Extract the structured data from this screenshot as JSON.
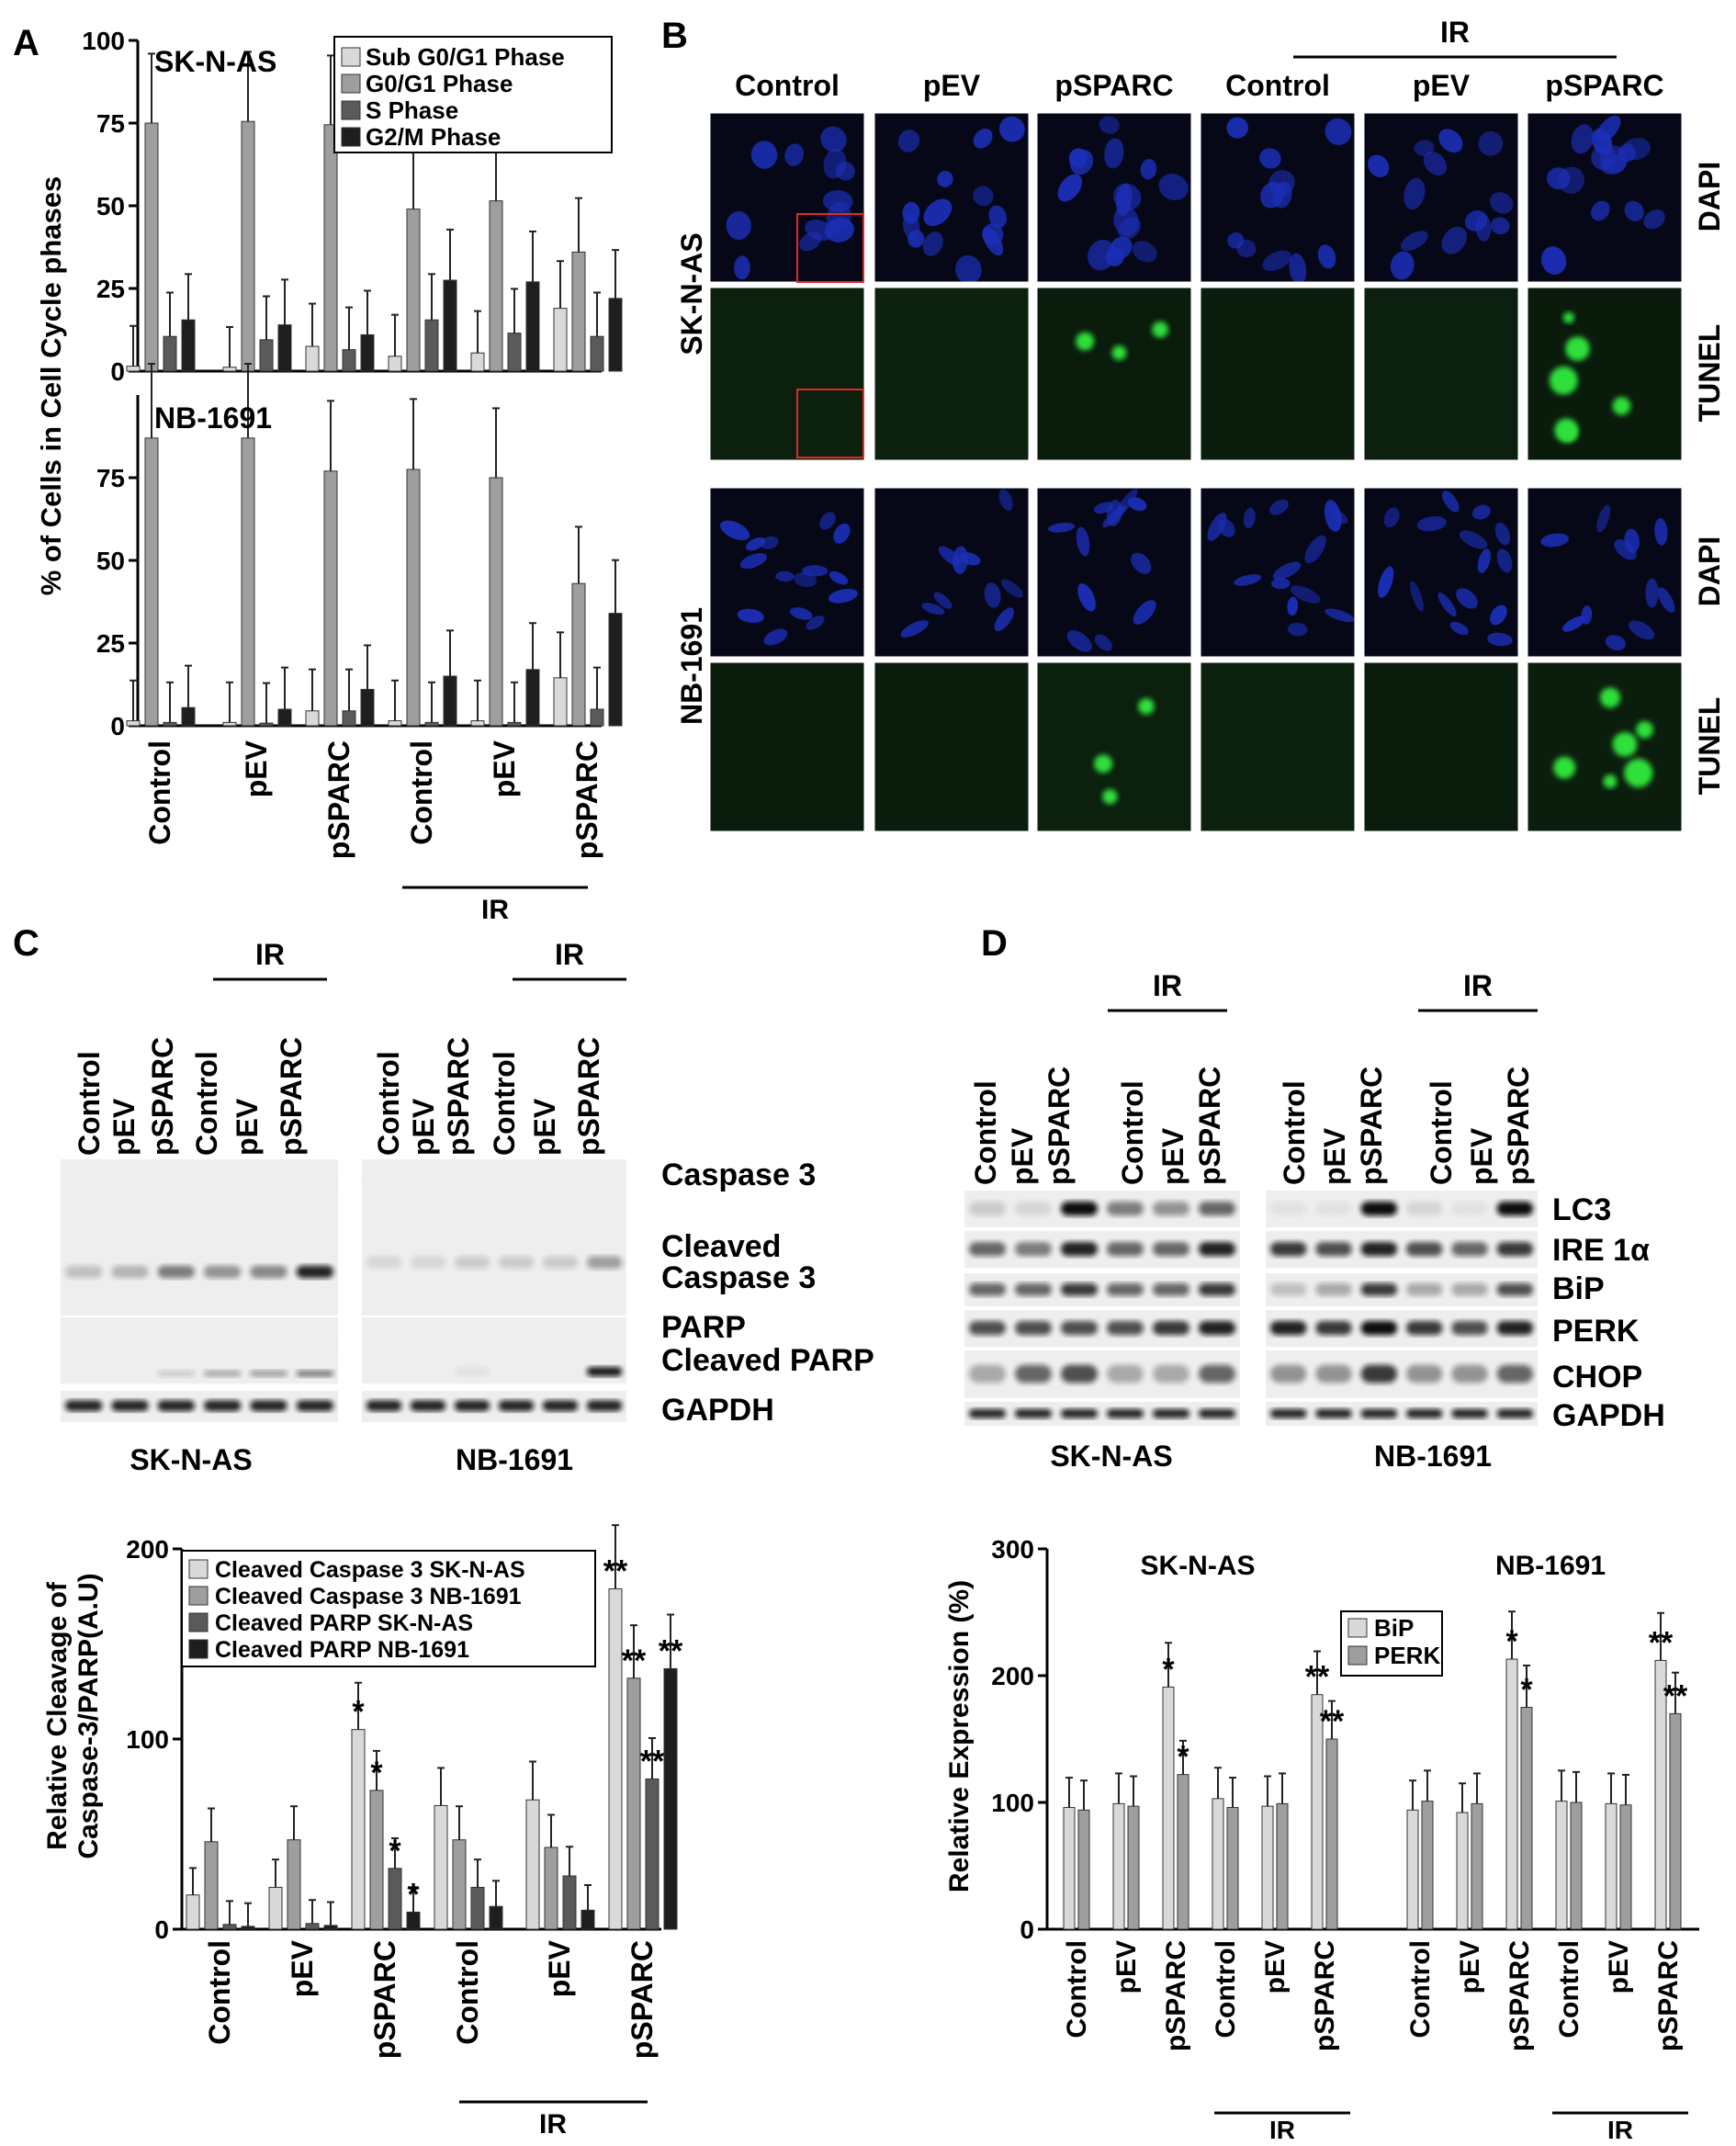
{
  "panel_labels": {
    "a": "A",
    "b": "B",
    "c": "C",
    "d": "D"
  },
  "colors": {
    "shade1": "#d9d9d9",
    "shade2": "#9e9e9e",
    "shade3": "#5a5a5a",
    "shade4": "#1e1e1e",
    "dapi": "#1c2fb8",
    "tunel": "#2ee03a",
    "roi": "#e02a2a"
  },
  "conditions": [
    "Control",
    "pEV",
    "pSPARC",
    "Control",
    "pEV",
    "pSPARC"
  ],
  "ir_label": "IR",
  "panel_a": {
    "ylabel": "% of Cells in Cell Cycle phases",
    "legend": [
      "Sub G0/G1 Phase",
      "G0/G1 Phase",
      "S Phase",
      "G2/M Phase"
    ],
    "ticks": [
      "0",
      "25",
      "50",
      "75",
      "100"
    ],
    "ylim": [
      0,
      100
    ]
  },
  "panel_b": {
    "cell_lines": [
      "SK-N-AS",
      "NB-1691"
    ],
    "stains": [
      "DAPI",
      "TUNEL",
      "DAPI",
      "TUNEL"
    ]
  },
  "panel_c": {
    "blot_labels": [
      "Caspase 3",
      "Cleaved",
      "Caspase 3",
      "PARP",
      "Cleaved PARP",
      "GAPDH"
    ],
    "cell_lines": [
      "SK-N-AS",
      "NB-1691"
    ],
    "ylabel_line1": "Relative Cleavage of",
    "ylabel_line2": "Caspase-3/PARP(A.U)",
    "legend": [
      "Cleaved Caspase 3 SK-N-AS",
      "Cleaved Caspase 3 NB-1691",
      "Cleaved PARP SK-N-AS",
      "Cleaved PARP NB-1691"
    ],
    "ticks": [
      "0",
      "100",
      "200"
    ]
  },
  "panel_d": {
    "blot_labels": [
      "LC3",
      "IRE 1α",
      "BiP",
      "PERK",
      "CHOP",
      "GAPDH"
    ],
    "cell_lines": [
      "SK-N-AS",
      "NB-1691"
    ],
    "ylabel": "Relative Expression (%)",
    "legend": [
      "BiP",
      "PERK"
    ],
    "ticks": [
      "0",
      "100",
      "200",
      "300"
    ]
  },
  "chart_data": [
    {
      "type": "bar",
      "title": "SK-N-AS",
      "ylabel": "% of Cells in Cell Cycle phases",
      "ylim": [
        0,
        100
      ],
      "categories": [
        "Control",
        "pEV",
        "pSPARC",
        "Control",
        "pEV",
        "pSPARC"
      ],
      "series": [
        {
          "name": "Sub G0/G1 Phase",
          "values": [
            1.5,
            1.2,
            7.5,
            4.5,
            5.5,
            19
          ]
        },
        {
          "name": "G0/G1 Phase",
          "values": [
            75,
            75.5,
            74.5,
            49,
            51.5,
            36
          ]
        },
        {
          "name": "S Phase",
          "values": [
            10.5,
            9.5,
            6.5,
            15.5,
            11.5,
            10.5
          ]
        },
        {
          "name": "G2/M Phase",
          "values": [
            15.5,
            14,
            11,
            27.5,
            27,
            22
          ]
        }
      ]
    },
    {
      "type": "bar",
      "title": "NB-1691",
      "ylabel": "% of Cells in Cell Cycle phases",
      "ylim": [
        0,
        100
      ],
      "categories": [
        "Control",
        "pEV",
        "pSPARC",
        "Control",
        "pEV",
        "pSPARC"
      ],
      "series": [
        {
          "name": "Sub G0/G1 Phase",
          "values": [
            1.5,
            1,
            4.5,
            1.5,
            1.5,
            14.5
          ]
        },
        {
          "name": "G0/G1 Phase",
          "values": [
            87,
            87,
            77,
            77.5,
            75,
            43
          ]
        },
        {
          "name": "S Phase",
          "values": [
            1,
            0.8,
            4.5,
            1,
            1,
            5
          ]
        },
        {
          "name": "G2/M Phase",
          "values": [
            5.5,
            5,
            11,
            15,
            17,
            34
          ]
        }
      ]
    },
    {
      "type": "bar",
      "ylabel": "Relative Cleavage of Caspase-3/PARP(A.U)",
      "ylim": [
        0,
        200
      ],
      "categories": [
        "Control",
        "pEV",
        "pSPARC",
        "Control",
        "pEV",
        "pSPARC"
      ],
      "series": [
        {
          "name": "Cleaved Caspase 3 SK-N-AS",
          "values": [
            18,
            22,
            105,
            65,
            68,
            179
          ],
          "marks": [
            "",
            "",
            "*",
            "",
            "",
            "**"
          ]
        },
        {
          "name": "Cleaved Caspase 3 NB-1691",
          "values": [
            46,
            47,
            73,
            47,
            43,
            132
          ],
          "marks": [
            "",
            "",
            "*",
            "",
            "",
            "**"
          ]
        },
        {
          "name": "Cleaved PARP SK-N-AS",
          "values": [
            2.5,
            3,
            32,
            22,
            28,
            79
          ],
          "marks": [
            "",
            "",
            "*",
            "",
            "",
            "**"
          ]
        },
        {
          "name": "Cleaved PARP NB-1691",
          "values": [
            1.5,
            2,
            9,
            12,
            10,
            137
          ],
          "marks": [
            "",
            "",
            "*",
            "",
            "",
            "**"
          ]
        }
      ]
    },
    {
      "type": "bar",
      "ylabel": "Relative Expression (%)",
      "ylim": [
        0,
        300
      ],
      "groups": [
        "SK-N-AS",
        "NB-1691"
      ],
      "categories": [
        "Control",
        "pEV",
        "pSPARC",
        "Control",
        "pEV",
        "pSPARC",
        "Control",
        "pEV",
        "pSPARC",
        "Control",
        "pEV",
        "pSPARC"
      ],
      "series": [
        {
          "name": "BiP",
          "values": [
            96,
            99,
            191,
            103,
            97,
            185,
            94,
            92,
            213,
            101,
            99,
            212
          ],
          "marks": [
            "",
            "",
            "*",
            "",
            "",
            "**",
            "",
            "",
            "*",
            "",
            "",
            "**"
          ]
        },
        {
          "name": "PERK",
          "values": [
            94,
            97,
            122,
            96,
            99,
            150,
            101,
            99,
            175,
            100,
            98,
            170
          ],
          "marks": [
            "",
            "",
            "*",
            "",
            "",
            "**",
            "",
            "",
            "*",
            "",
            "",
            "**"
          ]
        }
      ]
    }
  ]
}
